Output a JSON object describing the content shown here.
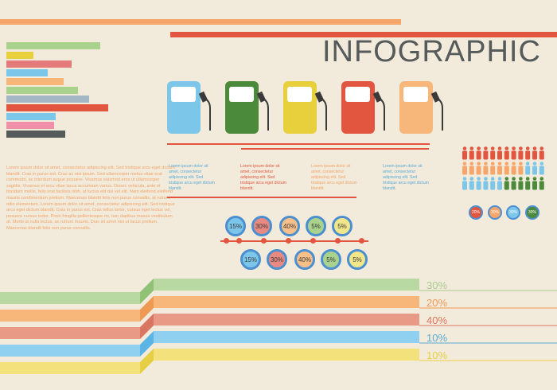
{
  "title": "INFOGRAPHIC",
  "colors": {
    "background": "#f2ebdb",
    "orange": "#f7a66b",
    "red": "#e2553f",
    "green": "#4c8a3b",
    "yellow": "#e8cf3c",
    "blue": "#7cc6ea",
    "blue_ring": "#4b8fd0"
  },
  "pump_icons": [
    "fuel-pump-blue",
    "fuel-pump-green",
    "fuel-pump-yellow",
    "fuel-pump-red",
    "fuel-pump-orange"
  ],
  "paragraph": "Lorem ipsum dolor sit amet, consectetur adipiscing elit. Sed tristique arcu eget dictum blandit. Cras in purus est. Cras ac nisi ipsum. Sed ullamcorper metus vitae erat commodo, ac interdum augue posuere. Vivamus euismod eros ut ullamcorper sagittis. Vivamus et arcu vitae lacus accumsan varius. Donec vehicula, ante et tincidunt mollis, felis erat facilisis nibh, at luctus elit dui vel elit. Nam eleifend eleifend mauris condimentum pretium. Maecenas blandit felis non purus convallis, at rutrum odio elementum. Lorem ipsum dolor sit amet, consectetur adipiscing elit. Sed tristique arcu eget dictum blandit. Cras in purus est. Cras tellus tortor, cursus eget lectus vel, posuere cursus tortor. Proin fringilla pellentesque mi, non dapibus massa vestibulum at. Morbi ut nulla lectus, ac rutrum mauris. Duis sit amet nisi ut lacus pretium. Maecenas blandit felis non purus convallis.",
  "notes": [
    {
      "text": "Lorem ipsum dolor sit amet, consectetur adipiscing elit. Sed tristique arcu eget dictum blandit.",
      "color": "#5aa9d6"
    },
    {
      "text": "Lorem ipsum dolor sit amet, consectetur adipiscing elit. Sed tristique arcu eget dictum blandit.",
      "color": "#e2553f"
    },
    {
      "text": "Lorem ipsum dolor sit amet, consectetur adipiscing elit. Sed tristique arcu eget dictum blandit.",
      "color": "#f0a46a"
    },
    {
      "text": "Lorem ipsum dolor sit amet, consectetur adipiscing elit. Sed tristique arcu eget dictum blandit.",
      "color": "#5aa9d6"
    }
  ],
  "timeline_top": [
    "15%",
    "30%",
    "40%",
    "5%",
    "5%"
  ],
  "timeline_bottom": [
    "15%",
    "30%",
    "40%",
    "5%",
    "5%"
  ],
  "timeline_top_colors": [
    "#7cc6ea",
    "#e88a82",
    "#f7c089",
    "#a9d38d",
    "#f2e68a"
  ],
  "timeline_bottom_colors": [
    "#7cc6ea",
    "#e88a82",
    "#f7c089",
    "#a9d38d",
    "#f2e68a"
  ],
  "people_badges": [
    {
      "label": "20%",
      "color": "#e2553f"
    },
    {
      "label": "20%",
      "color": "#f7a66b"
    },
    {
      "label": "30%",
      "color": "#7cc6ea"
    },
    {
      "label": "30%",
      "color": "#4c8a3b"
    }
  ],
  "bands": [
    {
      "label": "30%",
      "color": "#b9d9a3",
      "text_color": "#a9c98e"
    },
    {
      "label": "20%",
      "color": "#f7b77a",
      "text_color": "#f09a55"
    },
    {
      "label": "40%",
      "color": "#e89a86",
      "text_color": "#e07560"
    },
    {
      "label": "10%",
      "color": "#8fcff0",
      "text_color": "#5aa9d6"
    },
    {
      "label": "10%",
      "color": "#f3e27c",
      "text_color": "#e8cf3c"
    }
  ]
}
